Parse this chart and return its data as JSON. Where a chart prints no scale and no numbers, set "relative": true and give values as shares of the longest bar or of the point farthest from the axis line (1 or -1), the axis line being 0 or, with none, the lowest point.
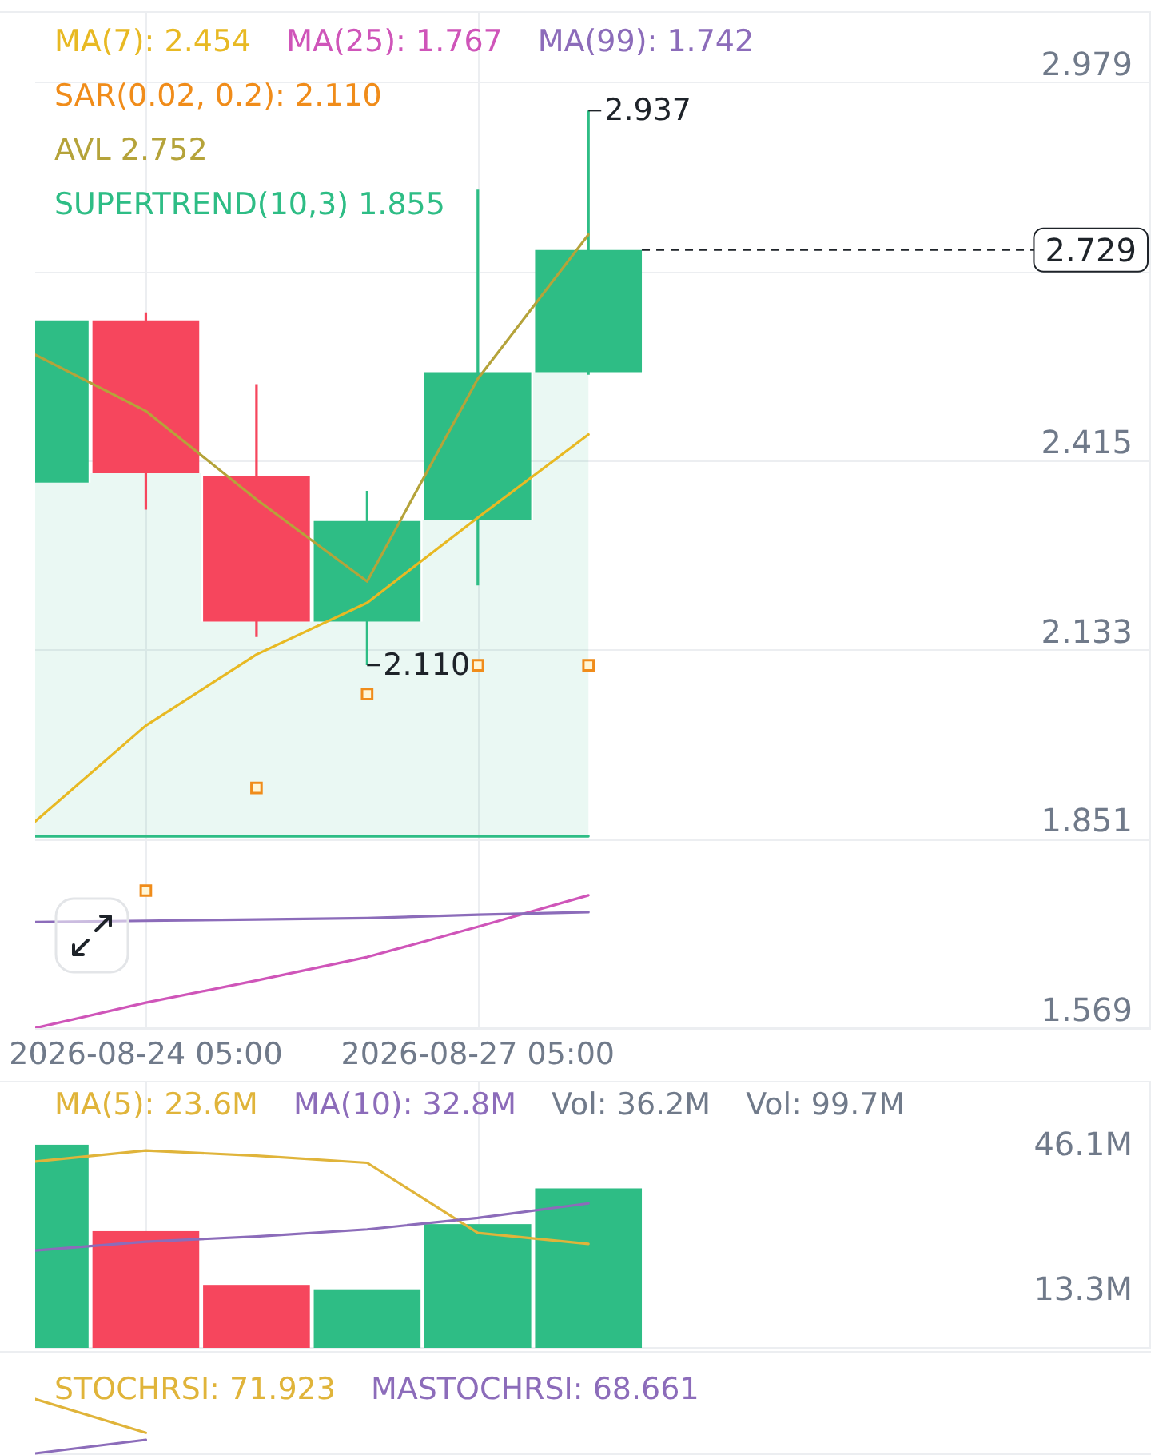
{
  "chart_data": [
    {
      "type": "candlestick",
      "x": [
        "2026-08-23T05:00",
        "2026-08-24T05:00",
        "2026-08-25T05:00",
        "2026-08-26T05:00",
        "2026-08-27T05:00",
        "2026-08-28T05:00"
      ],
      "ohlc": [
        [
          2.382,
          2.624,
          2.382,
          2.624
        ],
        [
          2.624,
          2.636,
          2.342,
          2.396
        ],
        [
          2.392,
          2.529,
          2.152,
          2.175
        ],
        [
          2.175,
          2.37,
          2.11,
          2.325
        ],
        [
          2.326,
          2.819,
          2.229,
          2.547
        ],
        [
          2.547,
          2.937,
          2.543,
          2.729
        ]
      ],
      "colors": [
        "#2ebd85",
        "#f6465d",
        "#f6465d",
        "#2ebd85",
        "#2ebd85",
        "#2ebd85"
      ],
      "series": [
        {
          "name": "MA(7): 2.454",
          "type": "line",
          "color": "#e8b923",
          "values": [
            1.877,
            2.02,
            2.126,
            2.203,
            2.33,
            2.454
          ]
        },
        {
          "name": "MA(25): 1.767",
          "type": "line",
          "color": "#cf55b9",
          "values": [
            1.569,
            1.607,
            1.64,
            1.675,
            1.72,
            1.767
          ]
        },
        {
          "name": "MA(99): 1.742",
          "type": "line",
          "color": "#8c6cba",
          "values": [
            1.727,
            1.729,
            1.731,
            1.733,
            1.738,
            1.742
          ]
        },
        {
          "name": "SAR(0.02, 0.2): 2.110",
          "type": "scatter",
          "marker": "square",
          "color": "#f08c1a",
          "values": [
            null,
            1.774,
            1.927,
            2.067,
            2.11,
            2.11
          ]
        },
        {
          "name": "AVL 2.752",
          "type": "line",
          "color": "#b5a33a",
          "values": [
            2.573,
            2.489,
            2.357,
            2.235,
            2.537,
            2.752
          ]
        },
        {
          "name": "SUPERTREND(10,3) 1.855",
          "type": "line",
          "color": "#2ebd85",
          "values": [
            1.855,
            1.855,
            1.855,
            1.855,
            1.855,
            1.855
          ],
          "lower": [
            1.855,
            1.855,
            1.855,
            1.855,
            1.855,
            1.855
          ],
          "upper": [
            2.382,
            2.396,
            2.175,
            2.175,
            2.326,
            2.547
          ]
        }
      ],
      "xlim": [
        "2026-08-23T05:00",
        "2026-09-02T07:00"
      ],
      "xticks": [
        {
          "value": "2026-08-24T05:00",
          "label": "2026-08-24 05:00"
        },
        {
          "value": "2026-08-27T05:00",
          "label": "2026-08-27 05:00"
        }
      ],
      "ylim": [
        1.569,
        3.085
      ],
      "yticks": [
        1.569,
        1.851,
        2.133,
        2.415,
        {
          "value": 2.697,
          "label": null
        },
        2.979
      ],
      "grid": true,
      "legend": "top left",
      "ref_lines": [
        {
          "axis": "y",
          "value": 2.729,
          "label": "2.729",
          "line_style": "dashed",
          "color": "#1e2329"
        }
      ],
      "annotations": [
        {
          "text": "2.937",
          "x": "2026-08-28T05:00",
          "y": 2.937
        },
        {
          "text": "2.110",
          "x": "2026-08-26T05:00",
          "y": 2.11
        }
      ]
    },
    {
      "type": "bar",
      "x": [
        "2026-08-23T05:00",
        "2026-08-24T05:00",
        "2026-08-25T05:00",
        "2026-08-26T05:00",
        "2026-08-27T05:00",
        "2026-08-28T05:00"
      ],
      "series": [
        {
          "type": "bar",
          "colors": [
            "#2ebd85",
            "#f6465d",
            "#f6465d",
            "#2ebd85",
            "#2ebd85",
            "#2ebd85"
          ],
          "values": [
            46.1,
            26.5,
            14.3,
            13.3,
            28.1,
            36.2
          ]
        },
        {
          "name": "MA(5): 23.6M",
          "type": "line",
          "color": "#e0b43a",
          "values": [
            42.3,
            44.8,
            43.6,
            42.0,
            26.1,
            23.6
          ]
        },
        {
          "name": "MA(10): 32.8M",
          "type": "line",
          "color": "#8c6cba",
          "values": [
            22.1,
            24.1,
            25.3,
            26.9,
            29.5,
            32.8
          ]
        }
      ],
      "xlim": [
        "2026-08-23T05:00",
        "2026-09-02T07:00"
      ],
      "xticks": [
        {
          "value": "2026-08-24T05:00",
          "label": null
        },
        {
          "value": "2026-08-27T05:00",
          "label": null
        }
      ],
      "ylim": [
        0,
        60.6
      ],
      "yticks": [
        {
          "value": 46.1,
          "label": "46.1M"
        },
        {
          "value": 13.3,
          "label": "13.3M"
        }
      ],
      "tick_labels": "y",
      "grid": "x",
      "legend": "top left",
      "annotations": [
        "Vol: 36.2M",
        "Vol: 99.7M"
      ]
    },
    {
      "type": "line",
      "relative": true,
      "categories": [
        null,
        null,
        null,
        null,
        null,
        null
      ],
      "series": [
        {
          "name": "STOCHRSI: 71.923",
          "color": "#e0b43a",
          "values": [
            1,
            0.38,
            null,
            null,
            null,
            null
          ]
        },
        {
          "name": "MASTOCHRSI: 68.661",
          "color": "#8c6cba",
          "values": [
            0,
            0.25,
            null,
            null,
            null,
            null
          ]
        }
      ],
      "tick_labels": false,
      "legend": "top"
    }
  ]
}
